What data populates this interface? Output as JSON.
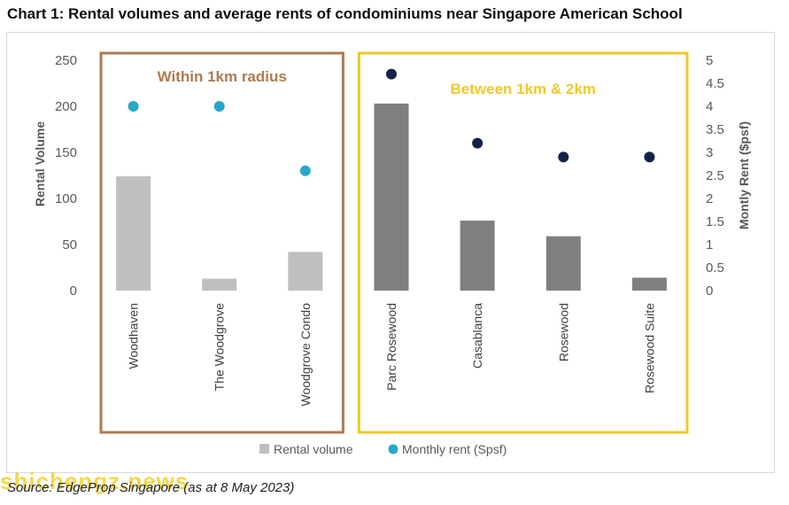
{
  "title": "Chart 1: Rental volumes and average rents of condominiums near Singapore American School",
  "source": "Source: EdgeProp Singapore (as at 8 May 2023)",
  "watermark": "shichengz.news",
  "chart_data": {
    "type": "bar",
    "categories": [
      "Woodhaven",
      "The Woodgrove",
      "Woodgrove Condo",
      "Parc Rosewood",
      "Casablanca",
      "Rosewood",
      "Rosewood Suite"
    ],
    "series": [
      {
        "name": "Rental volume",
        "type": "bar",
        "axis": "left",
        "values": [
          124,
          13,
          42,
          203,
          76,
          59,
          14
        ]
      },
      {
        "name": "Monthly rent (Spsf)",
        "type": "scatter",
        "axis": "right",
        "values": [
          4.0,
          4.0,
          2.6,
          4.7,
          3.2,
          2.9,
          2.9
        ]
      }
    ],
    "groups": [
      {
        "label": "Within 1km radius",
        "categories": [
          "Woodhaven",
          "The Woodgrove",
          "Woodgrove Condo"
        ],
        "color": "#b07a4f",
        "bar_color": "#bfbfbf",
        "point_color": "#2aa6c7"
      },
      {
        "label": "Between 1km & 2km",
        "categories": [
          "Parc Rosewood",
          "Casablanca",
          "Rosewood",
          "Rosewood Suite"
        ],
        "color": "#f0c929",
        "bar_color": "#7f7f7f",
        "point_color": "#13224b"
      }
    ],
    "ylabel": "Rental Volume",
    "y2label": "Montly Rent ($psf)",
    "ylim": [
      0,
      250
    ],
    "yticks": [
      0,
      50,
      100,
      150,
      200,
      250
    ],
    "y2lim": [
      0,
      5
    ],
    "y2ticks": [
      0,
      0.5,
      1,
      1.5,
      2,
      2.5,
      3,
      3.5,
      4,
      4.5,
      5
    ],
    "grid": false,
    "legend_position": "bottom-center"
  }
}
